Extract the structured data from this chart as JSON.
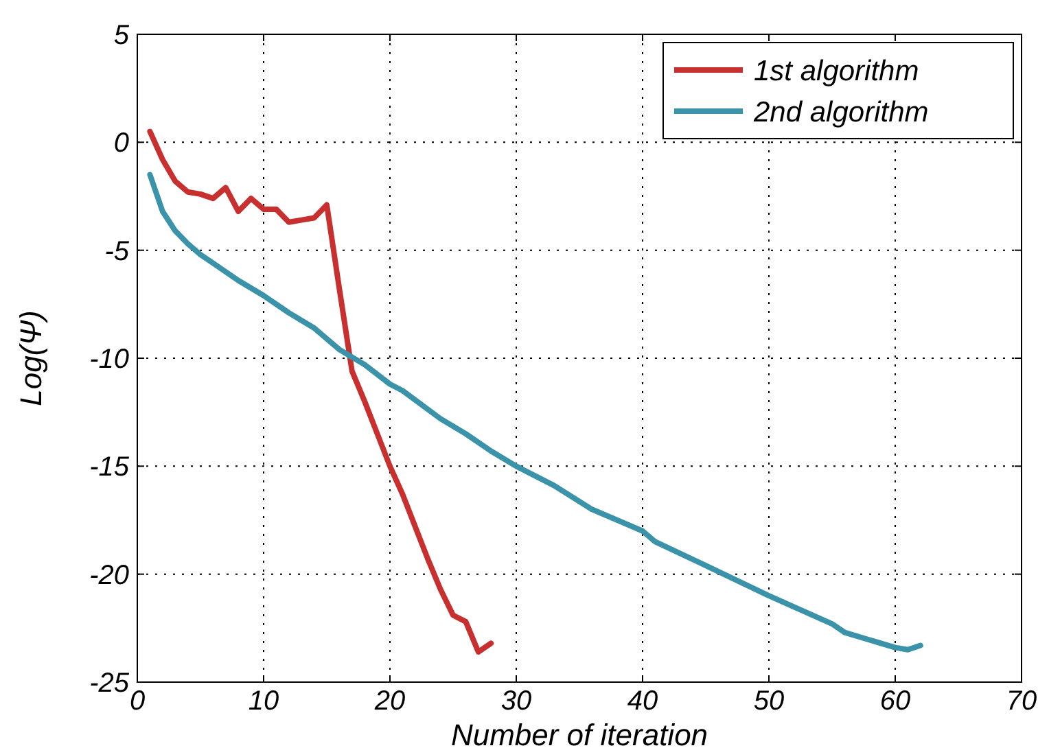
{
  "chart_data": {
    "type": "line",
    "xlabel": "Number of iteration",
    "ylabel": "Log(Ψ)",
    "xlim": [
      0,
      70
    ],
    "ylim": [
      -25,
      5
    ],
    "xticks": [
      0,
      10,
      20,
      30,
      40,
      50,
      60,
      70
    ],
    "yticks": [
      -25,
      -20,
      -15,
      -10,
      -5,
      0,
      5
    ],
    "grid": true,
    "legend": "top right",
    "line_style": "solid",
    "marker": "none",
    "series": [
      {
        "name": "1st algorithm",
        "color": "#c8302f",
        "x": [
          1,
          2,
          3,
          4,
          5,
          6,
          7,
          8,
          9,
          10,
          11,
          12,
          13,
          14,
          15,
          16,
          17,
          18,
          19,
          20,
          21,
          22,
          23,
          24,
          25,
          26,
          27,
          28
        ],
        "values": [
          0.5,
          -0.8,
          -1.8,
          -2.3,
          -2.4,
          -2.6,
          -2.1,
          -3.2,
          -2.6,
          -3.1,
          -3.1,
          -3.7,
          -3.6,
          -3.5,
          -2.9,
          -6.8,
          -10.6,
          -12,
          -13.5,
          -15,
          -16.3,
          -17.8,
          -19.3,
          -20.7,
          -21.9,
          -22.2,
          -23.6,
          -23.2
        ]
      },
      {
        "name": "2nd algorithm",
        "color": "#3a93a8",
        "x": [
          1,
          2,
          3,
          4,
          5,
          6,
          8,
          10,
          12,
          14,
          15,
          16,
          18,
          20,
          21,
          24,
          26,
          28,
          30,
          33,
          36,
          40,
          41,
          45,
          50,
          55,
          56,
          60,
          61,
          62
        ],
        "values": [
          -1.5,
          -3.2,
          -4.1,
          -4.7,
          -5.2,
          -5.6,
          -6.4,
          -7.1,
          -7.9,
          -8.6,
          -9.1,
          -9.6,
          -10.3,
          -11.2,
          -11.5,
          -12.8,
          -13.5,
          -14.3,
          -15,
          -15.9,
          -17,
          -18,
          -18.5,
          -19.6,
          -21,
          -22.3,
          -22.7,
          -23.4,
          -23.5,
          -23.3
        ]
      }
    ]
  }
}
